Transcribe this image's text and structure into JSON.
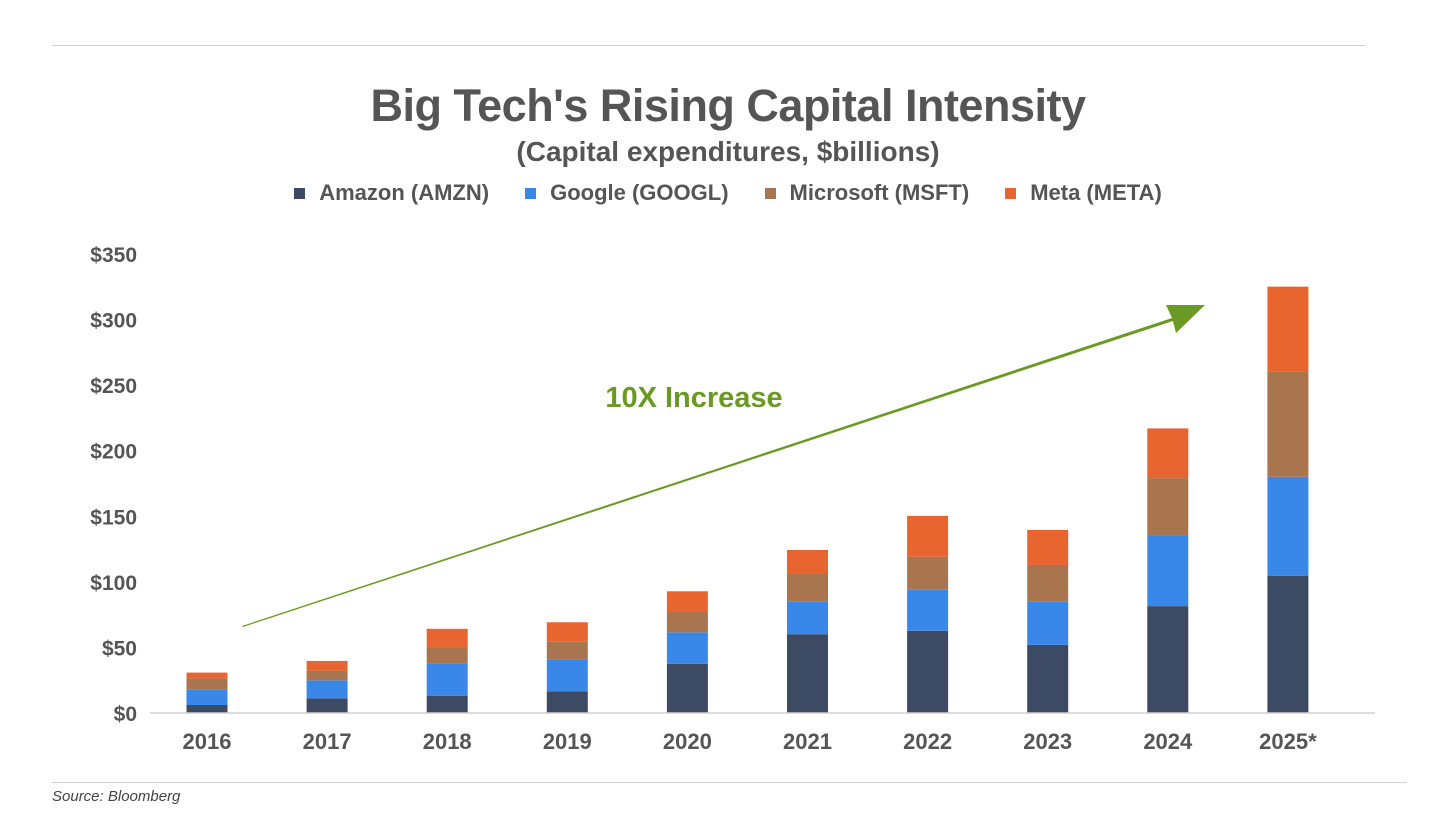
{
  "chart_data": {
    "type": "bar",
    "stacked": true,
    "title": "Big Tech's Rising Capital Intensity",
    "subtitle": "(Capital expenditures, $billions)",
    "xlabel": "",
    "ylabel": "",
    "ylim": [
      0,
      350
    ],
    "yticks": [
      0,
      50,
      100,
      150,
      200,
      250,
      300,
      350
    ],
    "ytick_labels": [
      "$0",
      "$50",
      "$100",
      "$150",
      "$200",
      "$250",
      "$300",
      "$350"
    ],
    "categories": [
      "2016",
      "2017",
      "2018",
      "2019",
      "2020",
      "2021",
      "2022",
      "2023",
      "2024",
      "2025*"
    ],
    "legend_position": "top-center",
    "grid": false,
    "series": [
      {
        "name": "Amazon (AMZN)",
        "color": "#3d4a63",
        "values": [
          6.1,
          11.2,
          13.2,
          16.5,
          37.5,
          60.1,
          62.7,
          52.0,
          81.5,
          104.7
        ]
      },
      {
        "name": "Google (GOOGL)",
        "color": "#3a87ea",
        "values": [
          11.7,
          13.7,
          24.7,
          24.2,
          24.0,
          24.7,
          31.3,
          32.8,
          53.8,
          75.4
        ]
      },
      {
        "name": "Microsoft (MSFT)",
        "color": "#a8754e",
        "values": [
          8.6,
          7.4,
          12.0,
          13.6,
          15.5,
          21.2,
          25.2,
          28.1,
          43.8,
          80.0
        ]
      },
      {
        "name": "Meta (META)",
        "color": "#e86530",
        "values": [
          4.4,
          7.4,
          14.3,
          14.9,
          15.8,
          18.3,
          31.1,
          26.7,
          37.9,
          65.0
        ]
      }
    ],
    "annotations": [
      {
        "text": "10X Increase",
        "color": "#6a9a23",
        "type": "arrow",
        "from_category": "2016",
        "to_category": "2025*"
      }
    ]
  },
  "source": "Source: Bloomberg"
}
